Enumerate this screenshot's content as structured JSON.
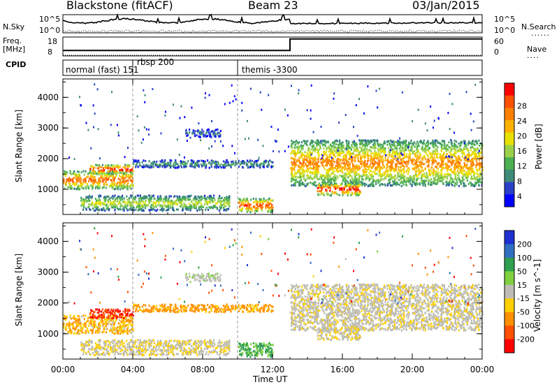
{
  "header": {
    "station": "Blackstone (fitACF)",
    "beam": "Beam 23",
    "date": "03/Jan/2015"
  },
  "top_panels": {
    "nsky_label": "N.Sky",
    "nsky_ticks": [
      "10^5",
      "10^0"
    ],
    "nsearch_label": "N.Search",
    "nsearch_ticks": [
      "10^5",
      "10^0"
    ],
    "freq_label": "Freq.",
    "freq_unit": "[MHz]",
    "freq_ticks": [
      "18",
      "8"
    ],
    "nave_label": "Nave",
    "nave_ticks": [
      "60",
      "0"
    ],
    "cpid_label": "CPID",
    "cpid_segments": [
      {
        "label": "normal (fast) 151"
      },
      {
        "label": "rbsp 200"
      },
      {
        "label": "themis -3300"
      }
    ]
  },
  "power_panel": {
    "ylabel": "Slant Range [km]",
    "yticks": [
      "4000",
      "3000",
      "2000",
      "1000"
    ],
    "colorbar_label": "Power [dB]",
    "colorbar_ticks": [
      "28",
      "24",
      "20",
      "16",
      "12",
      "8",
      "4"
    ],
    "colors": [
      "#0000ff",
      "#2a40c8",
      "#3d8c78",
      "#4caf50",
      "#9bd14a",
      "#e8e000",
      "#ffb000",
      "#ff8000",
      "#ff5000",
      "#ff0000"
    ]
  },
  "velocity_panel": {
    "ylabel": "Slant Range [km]",
    "yticks": [
      "4000",
      "3000",
      "2000",
      "1000"
    ],
    "colorbar_label": "Velocity [m s^-1]",
    "colorbar_ticks": [
      "200",
      "100",
      "50",
      "15",
      "-15",
      "-50",
      "-100",
      "-200"
    ],
    "colors": [
      "#1f2fd0",
      "#2f6fc0",
      "#2f9f50",
      "#80d040",
      "#bdbdb5",
      "#ffd000",
      "#ff9000",
      "#ff5000",
      "#ff0000"
    ]
  },
  "x_axis": {
    "label": "Time UT",
    "ticks": [
      "00:00",
      "04:00",
      "08:00",
      "12:00",
      "16:00",
      "20:00",
      "00:00"
    ]
  },
  "chart_data": {
    "type": "heatmap",
    "title": "Blackstone (fitACF)  Beam 23  03/Jan/2015",
    "xlabel": "Time UT",
    "ylabel": "Slant Range [km]",
    "xlim": [
      0,
      24
    ],
    "ylim": [
      180,
      4600
    ],
    "series": [
      {
        "name": "Power [dB]",
        "range": [
          0,
          30
        ]
      },
      {
        "name": "Velocity [m s^-1]",
        "range": [
          -200,
          200
        ]
      }
    ],
    "echo_bands": [
      {
        "t0": 0.0,
        "t1": 4.0,
        "r0": 1000,
        "r1": 1600,
        "power": 22,
        "velocity": -30
      },
      {
        "t0": 1.5,
        "t1": 4.0,
        "r0": 1500,
        "r1": 1800,
        "power": 26,
        "velocity": -150
      },
      {
        "t0": 1.0,
        "t1": 9.5,
        "r0": 300,
        "r1": 800,
        "power": 14,
        "velocity": -10
      },
      {
        "t0": 4.0,
        "t1": 12.0,
        "r0": 1700,
        "r1": 1950,
        "power": 8,
        "velocity": -40
      },
      {
        "t0": 7.0,
        "t1": 9.0,
        "r0": 2700,
        "r1": 2950,
        "power": 6,
        "velocity": 5
      },
      {
        "t0": 10.0,
        "t1": 12.0,
        "r0": 250,
        "r1": 700,
        "power": 24,
        "velocity": 40
      },
      {
        "t0": 13.0,
        "t1": 24.0,
        "r0": 1100,
        "r1": 2600,
        "power": 20,
        "velocity": -5
      },
      {
        "t0": 14.5,
        "t1": 17.0,
        "r0": 800,
        "r1": 1200,
        "power": 26,
        "velocity": -5
      }
    ],
    "cpid_changes_hours": [
      4.0,
      10.0
    ],
    "frequency_mhz": {
      "before_13h": 10.5,
      "after_13h": 17.7
    }
  }
}
